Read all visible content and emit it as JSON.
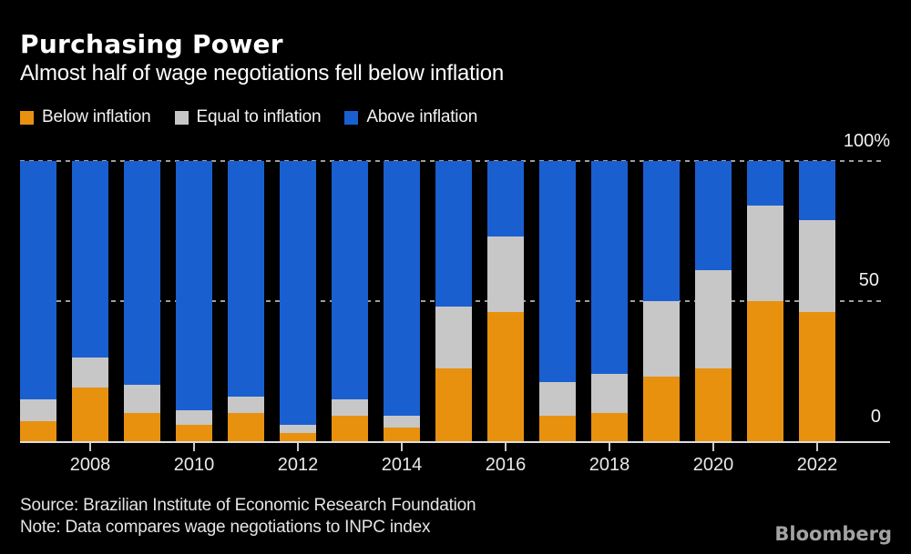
{
  "header": {
    "title": "Purchasing Power",
    "subtitle": "Almost half of wage negotiations fell below inflation"
  },
  "legend": [
    {
      "key": "below",
      "label": "Below inflation",
      "color": "#E8910F"
    },
    {
      "key": "equal",
      "label": "Equal to inflation",
      "color": "#C7C7C7"
    },
    {
      "key": "above",
      "label": "Above inflation",
      "color": "#1A5FD0"
    }
  ],
  "chart_data": {
    "type": "bar",
    "stacked": true,
    "unit": "percent",
    "title": "Purchasing Power",
    "subtitle": "Almost half of wage negotiations fell below inflation",
    "categories": [
      "2007",
      "2008",
      "2009",
      "2010",
      "2011",
      "2012",
      "2013",
      "2014",
      "2015",
      "2016",
      "2017",
      "2018",
      "2019",
      "2020",
      "2021",
      "2022"
    ],
    "series": [
      {
        "key": "below",
        "name": "Below inflation",
        "color": "#E8910F",
        "values": [
          7,
          19,
          10,
          6,
          10,
          3,
          9,
          5,
          26,
          46,
          9,
          10,
          23,
          26,
          50,
          46
        ]
      },
      {
        "key": "equal",
        "name": "Equal to inflation",
        "color": "#C7C7C7",
        "values": [
          8,
          11,
          10,
          5,
          6,
          3,
          6,
          4,
          22,
          27,
          12,
          14,
          27,
          35,
          34,
          33
        ]
      },
      {
        "key": "above",
        "name": "Above inflation",
        "color": "#1A5FD0",
        "values": [
          85,
          70,
          80,
          89,
          84,
          94,
          85,
          91,
          52,
          27,
          79,
          76,
          50,
          39,
          16,
          21
        ]
      }
    ],
    "ylim": [
      0,
      100
    ],
    "y_ticks": [
      "100%",
      "50",
      "0"
    ],
    "x_tick_labels": [
      "2008",
      "2010",
      "2012",
      "2014",
      "2016",
      "2018",
      "2020",
      "2022"
    ],
    "grid": "dashed horizontal at 50 and 100",
    "legend_position": "top"
  },
  "footer": {
    "source": "Source: Brazilian Institute of Economic Research Foundation",
    "note": "Note: Data compares wage negotiations to INPC index",
    "brand": "Bloomberg"
  }
}
